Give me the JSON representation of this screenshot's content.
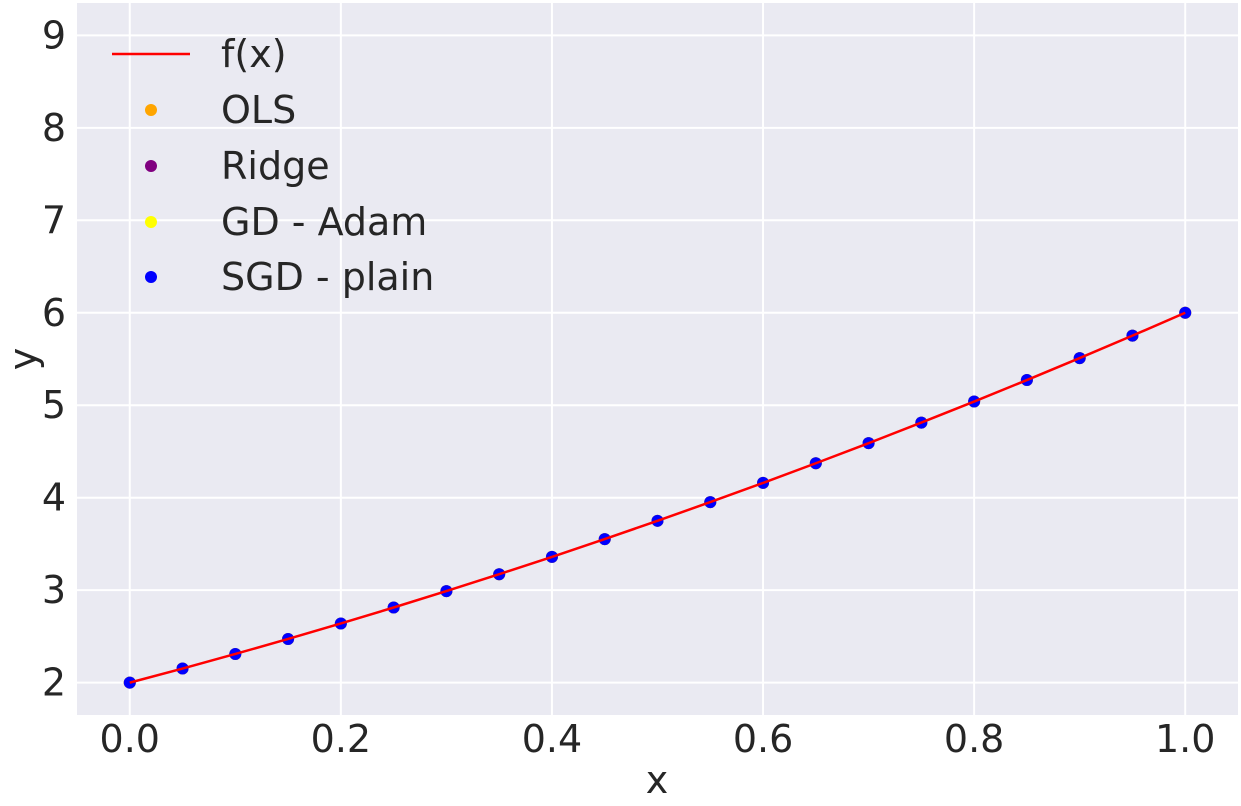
{
  "chart_data": {
    "type": "scatter",
    "xlabel": "x",
    "ylabel": "y",
    "xlim": [
      -0.05,
      1.05
    ],
    "ylim": [
      1.65,
      9.35
    ],
    "xticks": [
      0.0,
      0.2,
      0.4,
      0.6,
      0.8,
      1.0
    ],
    "xtick_labels": [
      "0.0",
      "0.2",
      "0.4",
      "0.6",
      "0.8",
      "1.0"
    ],
    "yticks": [
      2,
      3,
      4,
      5,
      6,
      7,
      8,
      9
    ],
    "ytick_labels": [
      "2",
      "3",
      "4",
      "5",
      "6",
      "7",
      "8",
      "9"
    ],
    "grid": true,
    "background": "#eaeaf2",
    "legend_placement": "top-left",
    "legend": [
      "f(x)",
      "OLS",
      "Ridge",
      "GD - Adam",
      "SGD - plain"
    ],
    "series": [
      {
        "name": "f(x)",
        "kind": "line",
        "color": "#ff0000",
        "x": [
          0.0,
          0.05,
          0.1,
          0.15,
          0.2,
          0.25,
          0.3,
          0.35,
          0.4,
          0.45,
          0.5,
          0.55,
          0.6,
          0.65,
          0.7,
          0.75,
          0.8,
          0.85,
          0.9,
          0.95,
          1.0
        ],
        "y": [
          2.0,
          2.1525,
          2.31,
          2.4725,
          2.64,
          2.8125,
          2.99,
          3.1725,
          3.36,
          3.5525,
          3.75,
          3.9525,
          4.16,
          4.3725,
          4.59,
          4.8125,
          5.04,
          5.2725,
          5.51,
          5.7525,
          6.0
        ]
      },
      {
        "name": "OLS",
        "kind": "scatter",
        "color": "#ffa500",
        "x": [
          0.0,
          0.05,
          0.1,
          0.15,
          0.2,
          0.25,
          0.3,
          0.35,
          0.4,
          0.45,
          0.5,
          0.55,
          0.6,
          0.65,
          0.7,
          0.75,
          0.8,
          0.85,
          0.9,
          0.95,
          1.0
        ],
        "y": [
          2.0,
          2.1525,
          2.31,
          2.4725,
          2.64,
          2.8125,
          2.99,
          3.1725,
          3.36,
          3.5525,
          3.75,
          3.9525,
          4.16,
          4.3725,
          4.59,
          4.8125,
          5.04,
          5.2725,
          5.51,
          5.7525,
          6.0
        ]
      },
      {
        "name": "Ridge",
        "kind": "scatter",
        "color": "#800080",
        "x": [
          0.0,
          0.05,
          0.1,
          0.15,
          0.2,
          0.25,
          0.3,
          0.35,
          0.4,
          0.45,
          0.5,
          0.55,
          0.6,
          0.65,
          0.7,
          0.75,
          0.8,
          0.85,
          0.9,
          0.95,
          1.0
        ],
        "y": [
          2.0,
          2.1525,
          2.31,
          2.4725,
          2.64,
          2.8125,
          2.99,
          3.1725,
          3.36,
          3.5525,
          3.75,
          3.9525,
          4.16,
          4.3725,
          4.59,
          4.8125,
          5.04,
          5.2725,
          5.51,
          5.7525,
          6.0
        ]
      },
      {
        "name": "GD - Adam",
        "kind": "scatter",
        "color": "#ffff00",
        "x": [
          0.0,
          0.05,
          0.1,
          0.15,
          0.2,
          0.25,
          0.3,
          0.35,
          0.4,
          0.45,
          0.5,
          0.55,
          0.6,
          0.65,
          0.7,
          0.75,
          0.8,
          0.85,
          0.9,
          0.95,
          1.0
        ],
        "y": [
          2.0,
          2.1525,
          2.31,
          2.4725,
          2.64,
          2.8125,
          2.99,
          3.1725,
          3.36,
          3.5525,
          3.75,
          3.9525,
          4.16,
          4.3725,
          4.59,
          4.8125,
          5.04,
          5.2725,
          5.51,
          5.7525,
          6.0
        ]
      },
      {
        "name": "SGD - plain",
        "kind": "scatter",
        "color": "#0000ff",
        "x": [
          0.0,
          0.05,
          0.1,
          0.15,
          0.2,
          0.25,
          0.3,
          0.35,
          0.4,
          0.45,
          0.5,
          0.55,
          0.6,
          0.65,
          0.7,
          0.75,
          0.8,
          0.85,
          0.9,
          0.95,
          1.0
        ],
        "y": [
          2.0,
          2.1525,
          2.31,
          2.4725,
          2.64,
          2.8125,
          2.99,
          3.1725,
          3.36,
          3.5525,
          3.75,
          3.9525,
          4.16,
          4.3725,
          4.59,
          4.8125,
          5.04,
          5.2725,
          5.51,
          5.7525,
          6.0
        ]
      }
    ]
  }
}
